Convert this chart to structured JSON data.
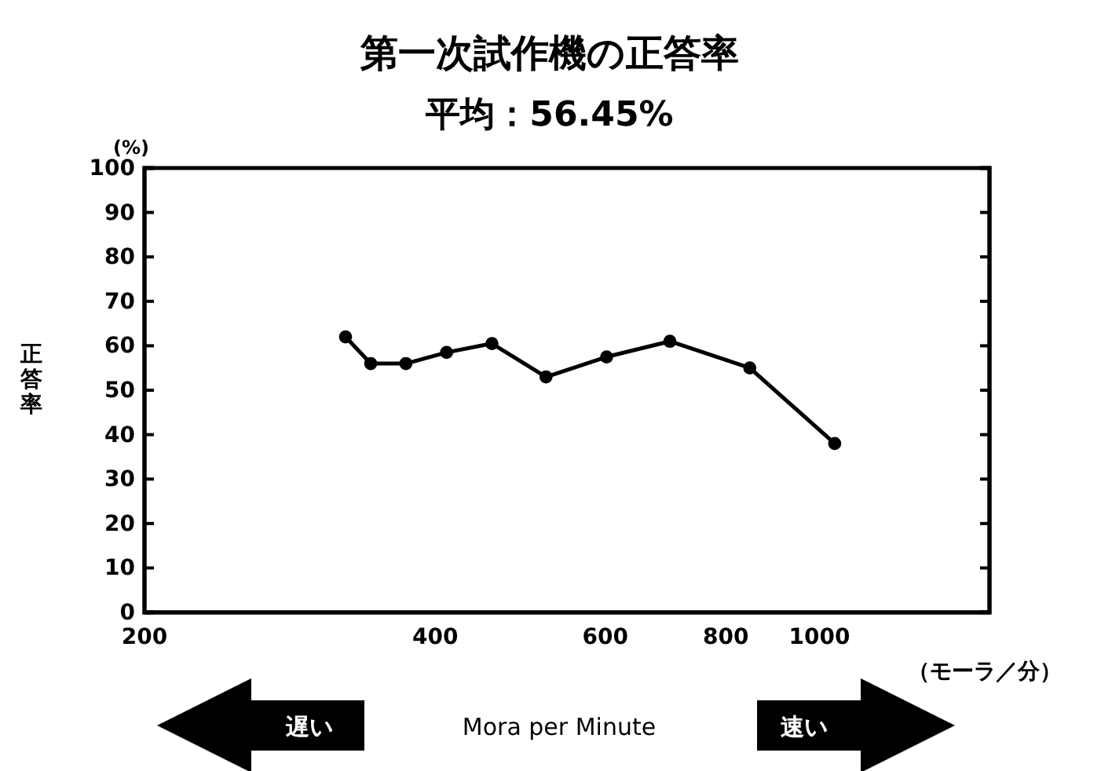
{
  "chart_data": {
    "type": "line",
    "title": "第一次試作機の正答率",
    "subtitle": "平均：56.45%",
    "xlabel": "Mora per Minute",
    "ylabel": "正答率",
    "x": [
      323,
      343,
      373,
      411,
      458,
      521,
      602,
      700,
      847,
      1037
    ],
    "series": [
      {
        "color": "#000000",
        "values": [
          62,
          56,
          56,
          58.5,
          60.5,
          53,
          57.5,
          61,
          55,
          38
        ]
      }
    ],
    "log": "x",
    "xlim": [
      200,
      1500
    ],
    "xticks": [
      200,
      400,
      600,
      800,
      1000
    ],
    "ylim": [
      0,
      100
    ],
    "yticks": [
      0,
      10,
      20,
      30,
      40,
      50,
      60,
      70,
      80,
      90,
      100
    ],
    "grid": false,
    "marker": "circle",
    "line_style": "solid",
    "annotations": [
      "(%)",
      "（モーラ／分）",
      "遅い",
      "速い"
    ]
  }
}
